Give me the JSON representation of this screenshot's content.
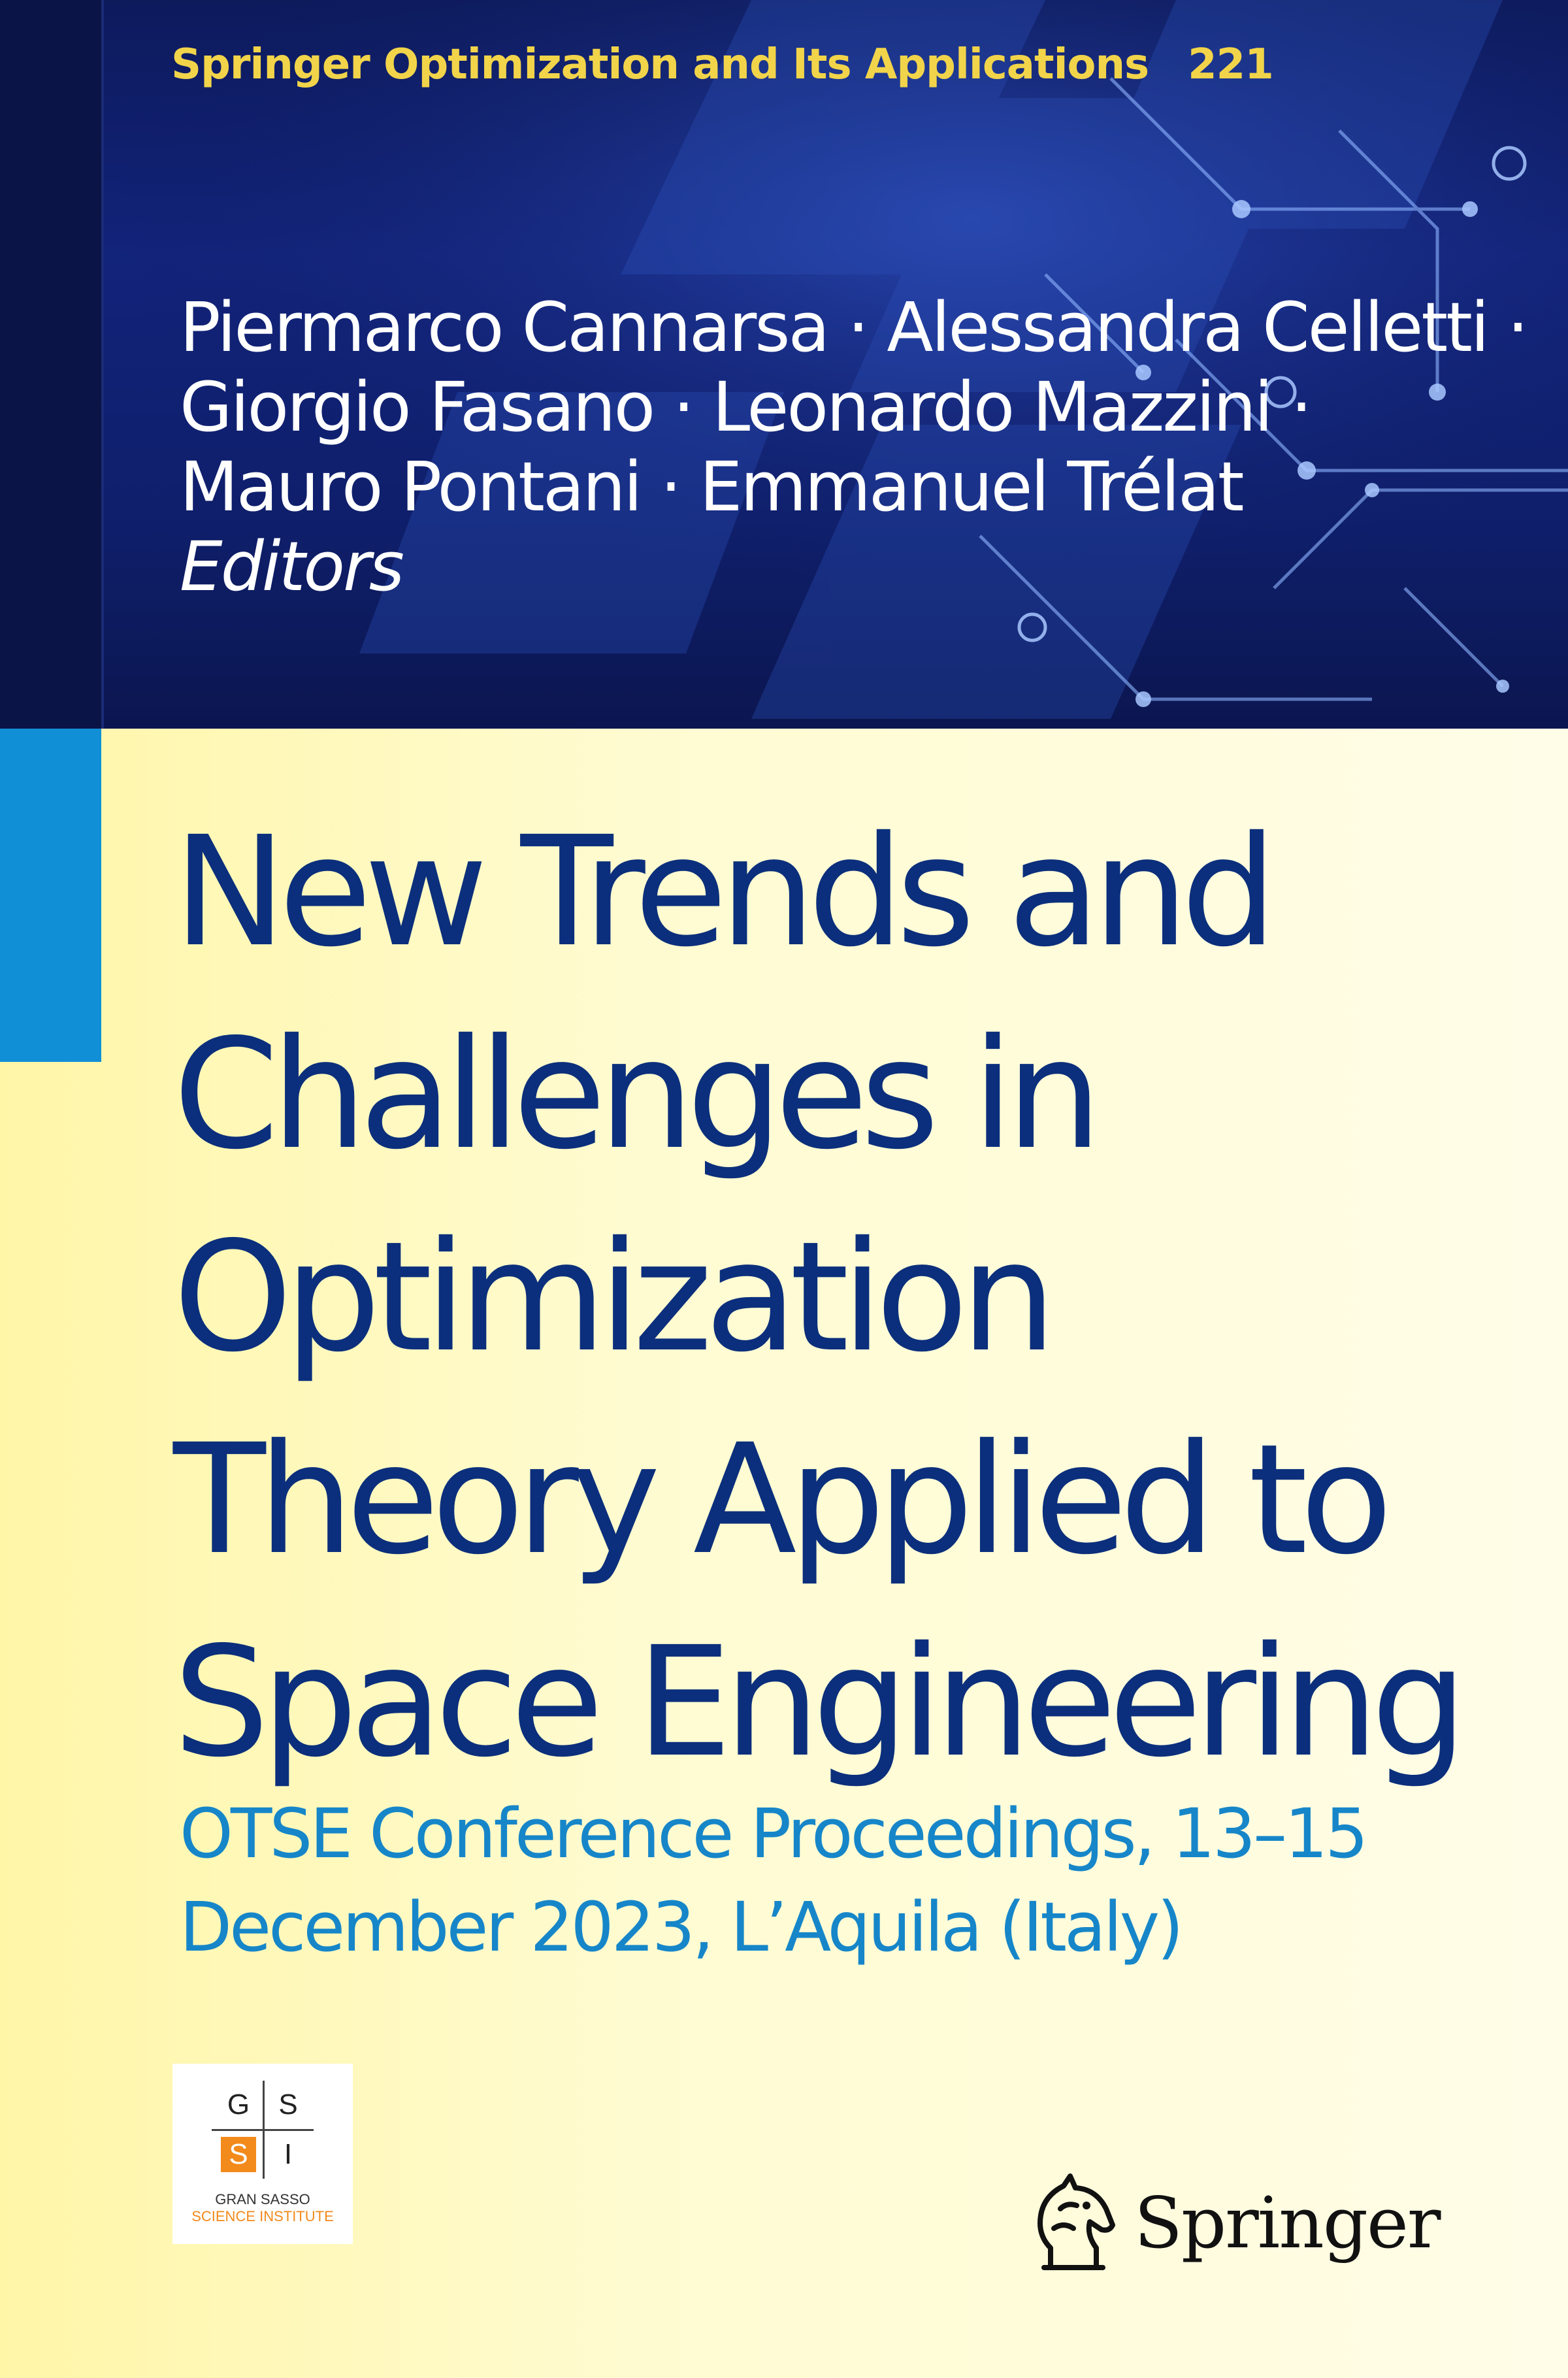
{
  "series": {
    "name": "Springer Optimization and Its Applications",
    "number": "221"
  },
  "editors": {
    "lines": [
      "Piermarco Cannarsa · Alessandra Celletti ·",
      "Giorgio Fasano · Leonardo Mazzini ·",
      "Mauro Pontani · Emmanuel Trélat"
    ],
    "role": "Editors"
  },
  "title": {
    "lines": [
      "New Trends and",
      "Challenges in",
      "Optimization",
      "Theory Applied to",
      "Space Engineering"
    ]
  },
  "subtitle": {
    "lines": [
      "OTSE Conference Proceedings, 13–15",
      "December 2023, L’Aquila (Italy)"
    ]
  },
  "gssi_logo": {
    "letters": [
      "G",
      "S",
      "S",
      "I"
    ],
    "caption_line1": "GRAN SASSO",
    "caption_line2": "SCIENCE INSTITUTE",
    "accent_color": "#f28a1c"
  },
  "publisher": {
    "name": "Springer",
    "icon": "springer-horse-icon"
  },
  "colors": {
    "band": "#12237a",
    "series_text": "#f1d44a",
    "title_text": "#0b2f7c",
    "subtitle_text": "#1686c9",
    "cyan_stripe": "#118fd6"
  }
}
